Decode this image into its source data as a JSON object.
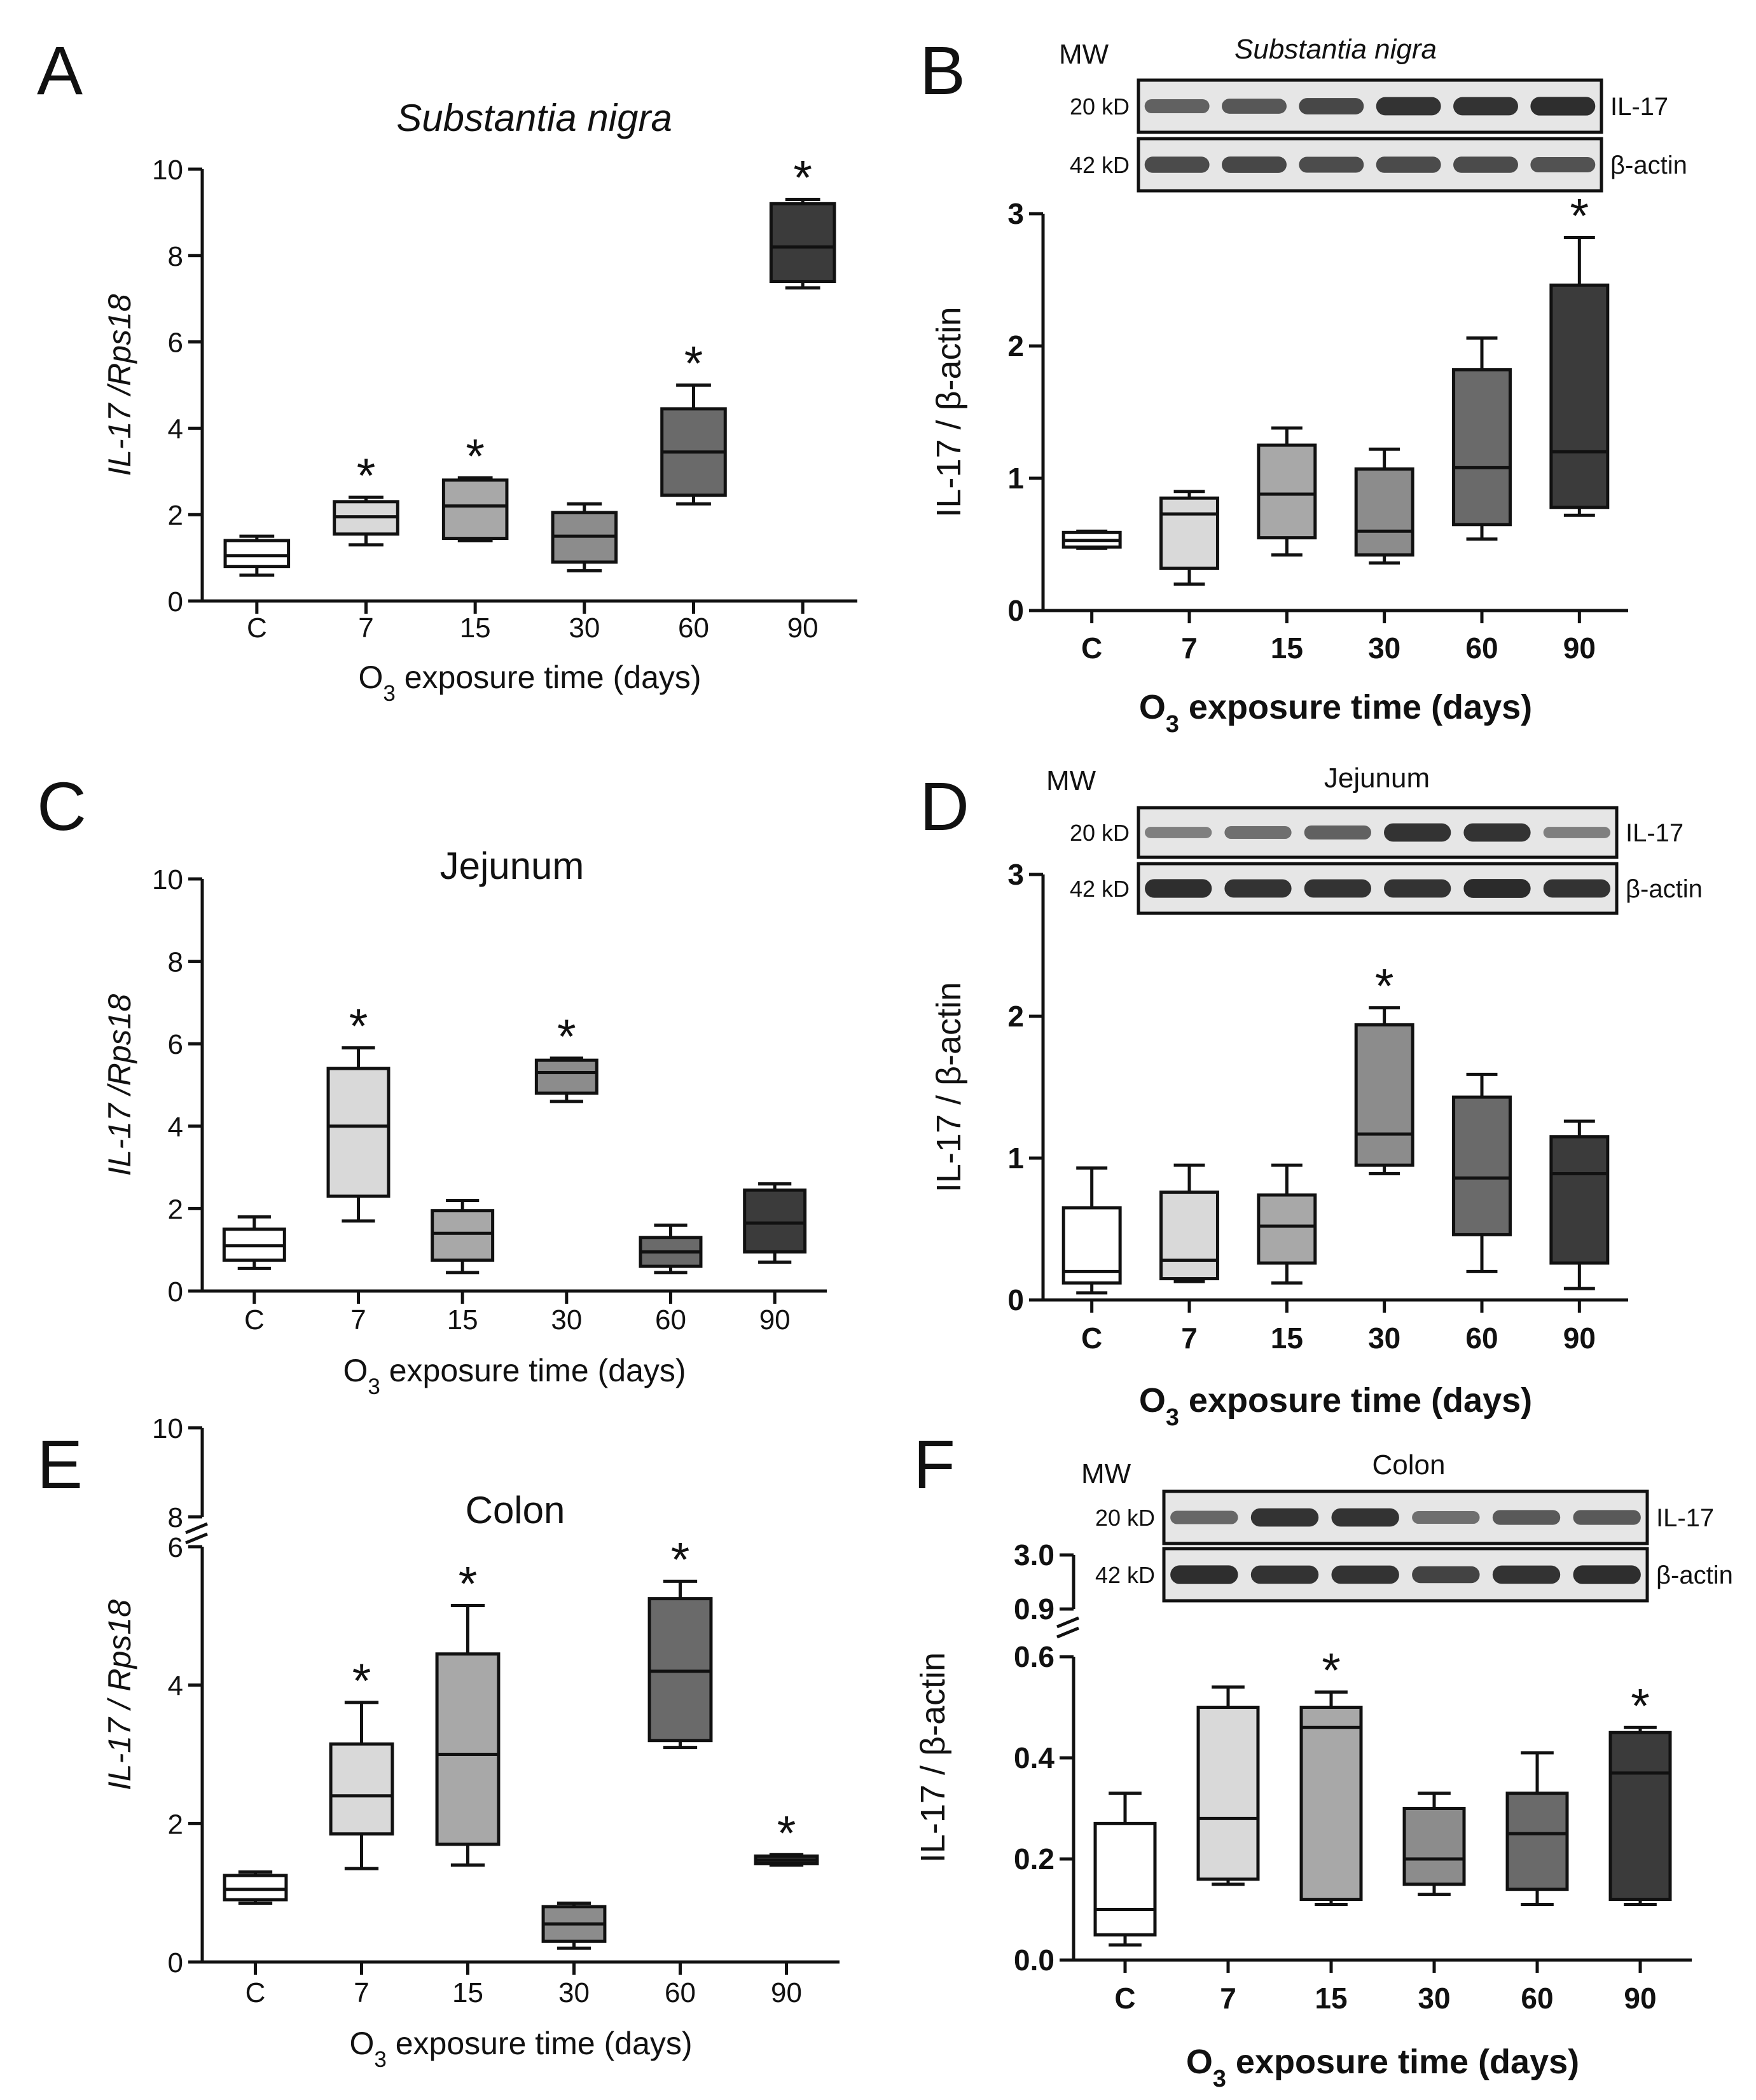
{
  "colors": {
    "c": "#ffffff",
    "d7": "#d9d9d9",
    "d15": "#a8a8a8",
    "d30": "#8c8c8c",
    "d60": "#6a6a6a",
    "d90": "#3b3b3b",
    "ink": "#111111",
    "blot": "#1c1c1c"
  },
  "chart_data": [
    {
      "id": "A",
      "panel_label": "A",
      "type": "box",
      "title": "Substantia nigra",
      "categories": [
        "C",
        "7",
        "15",
        "30",
        "60",
        "90"
      ],
      "xlabel_prefix": "O",
      "xlabel_sub": "3",
      "xlabel_suffix": " exposure time (days)",
      "ylabel": "IL-17 /Rps18",
      "ylim": [
        0,
        10
      ],
      "yticks": [
        "0",
        "2",
        "4",
        "6",
        "8",
        "10"
      ],
      "boxes": [
        {
          "min": 0.6,
          "q1": 0.8,
          "median": 1.05,
          "q3": 1.4,
          "max": 1.5,
          "sig": false
        },
        {
          "min": 1.3,
          "q1": 1.55,
          "median": 1.95,
          "q3": 2.3,
          "max": 2.4,
          "sig": true
        },
        {
          "min": 1.4,
          "q1": 1.45,
          "median": 2.2,
          "q3": 2.8,
          "max": 2.85,
          "sig": true
        },
        {
          "min": 0.7,
          "q1": 0.9,
          "median": 1.5,
          "q3": 2.05,
          "max": 2.25,
          "sig": false
        },
        {
          "min": 2.25,
          "q1": 2.45,
          "median": 3.45,
          "q3": 4.45,
          "max": 5.0,
          "sig": true
        },
        {
          "min": 7.25,
          "q1": 7.4,
          "median": 8.2,
          "q3": 9.2,
          "max": 9.3,
          "sig": true
        }
      ],
      "significance_marker": "*"
    },
    {
      "id": "B",
      "panel_label": "B",
      "type": "box",
      "categories": [
        "C",
        "7",
        "15",
        "30",
        "60",
        "90"
      ],
      "xlabel_prefix": "O",
      "xlabel_sub": "3",
      "xlabel_suffix": " exposure time (days)",
      "ylabel": "IL-17 / β-actin",
      "ylim": [
        0,
        3
      ],
      "yticks": [
        "0",
        "1",
        "2",
        "3"
      ],
      "boxes": [
        {
          "min": 0.47,
          "q1": 0.48,
          "median": 0.53,
          "q3": 0.59,
          "max": 0.6,
          "sig": false
        },
        {
          "min": 0.2,
          "q1": 0.32,
          "median": 0.73,
          "q3": 0.85,
          "max": 0.9,
          "sig": false
        },
        {
          "min": 0.42,
          "q1": 0.55,
          "median": 0.88,
          "q3": 1.25,
          "max": 1.38,
          "sig": false
        },
        {
          "min": 0.36,
          "q1": 0.42,
          "median": 0.6,
          "q3": 1.07,
          "max": 1.22,
          "sig": false
        },
        {
          "min": 0.54,
          "q1": 0.65,
          "median": 1.08,
          "q3": 1.82,
          "max": 2.06,
          "sig": false
        },
        {
          "min": 0.72,
          "q1": 0.78,
          "median": 1.2,
          "q3": 2.46,
          "max": 2.82,
          "sig": true
        }
      ],
      "significance_marker": "*",
      "blot": {
        "mw_label": "MW",
        "tissue": "Substantia nigra",
        "rows": [
          {
            "mw": "20 kD",
            "protein": "IL-17",
            "intensity": [
              0.55,
              0.62,
              0.72,
              0.85,
              0.85,
              0.88
            ]
          },
          {
            "mw": "42 kD",
            "protein": "β-actin",
            "intensity": [
              0.7,
              0.72,
              0.68,
              0.7,
              0.7,
              0.64
            ]
          }
        ]
      }
    },
    {
      "id": "C",
      "panel_label": "C",
      "type": "box",
      "title": "Jejunum",
      "categories": [
        "C",
        "7",
        "15",
        "30",
        "60",
        "90"
      ],
      "xlabel_prefix": "O",
      "xlabel_sub": "3",
      "xlabel_suffix": " exposure time (days)",
      "ylabel": "IL-17 /Rps18",
      "ylim": [
        0,
        10
      ],
      "yticks": [
        "0",
        "2",
        "4",
        "6",
        "8",
        "10"
      ],
      "boxes": [
        {
          "min": 0.55,
          "q1": 0.75,
          "median": 1.1,
          "q3": 1.5,
          "max": 1.8,
          "sig": false
        },
        {
          "min": 1.7,
          "q1": 2.3,
          "median": 4.0,
          "q3": 5.4,
          "max": 5.9,
          "sig": true
        },
        {
          "min": 0.45,
          "q1": 0.75,
          "median": 1.4,
          "q3": 1.95,
          "max": 2.2,
          "sig": false
        },
        {
          "min": 4.6,
          "q1": 4.8,
          "median": 5.3,
          "q3": 5.6,
          "max": 5.65,
          "sig": true
        },
        {
          "min": 0.45,
          "q1": 0.6,
          "median": 0.95,
          "q3": 1.3,
          "max": 1.6,
          "sig": false
        },
        {
          "min": 0.7,
          "q1": 0.95,
          "median": 1.65,
          "q3": 2.45,
          "max": 2.6,
          "sig": false
        }
      ],
      "significance_marker": "*"
    },
    {
      "id": "D",
      "panel_label": "D",
      "type": "box",
      "categories": [
        "C",
        "7",
        "15",
        "30",
        "60",
        "90"
      ],
      "xlabel_prefix": "O",
      "xlabel_sub": "3",
      "xlabel_suffix": " exposure time (days)",
      "ylabel": "IL-17 / β-actin",
      "ylim": [
        0,
        3
      ],
      "yticks": [
        "0",
        "1",
        "2",
        "3"
      ],
      "boxes": [
        {
          "min": 0.05,
          "q1": 0.12,
          "median": 0.2,
          "q3": 0.65,
          "max": 0.93,
          "sig": false
        },
        {
          "min": 0.13,
          "q1": 0.15,
          "median": 0.28,
          "q3": 0.76,
          "max": 0.95,
          "sig": false
        },
        {
          "min": 0.12,
          "q1": 0.26,
          "median": 0.52,
          "q3": 0.74,
          "max": 0.95,
          "sig": false
        },
        {
          "min": 0.89,
          "q1": 0.95,
          "median": 1.17,
          "q3": 1.94,
          "max": 2.06,
          "sig": true
        },
        {
          "min": 0.2,
          "q1": 0.46,
          "median": 0.86,
          "q3": 1.43,
          "max": 1.59,
          "sig": false
        },
        {
          "min": 0.08,
          "q1": 0.26,
          "median": 0.89,
          "q3": 1.15,
          "max": 1.26,
          "sig": false
        }
      ],
      "significance_marker": "*",
      "blot": {
        "mw_label": "MW",
        "tissue": "Jejunum",
        "rows": [
          {
            "mw": "20 kD",
            "protein": "IL-17",
            "intensity": [
              0.35,
              0.45,
              0.55,
              0.85,
              0.85,
              0.35
            ]
          },
          {
            "mw": "42 kD",
            "protein": "β-actin",
            "intensity": [
              0.88,
              0.85,
              0.85,
              0.85,
              0.9,
              0.85
            ]
          }
        ]
      }
    },
    {
      "id": "E",
      "panel_label": "E",
      "type": "box",
      "title": "Colon",
      "categories": [
        "C",
        "7",
        "15",
        "30",
        "60",
        "90"
      ],
      "xlabel_prefix": "O",
      "xlabel_sub": "3",
      "xlabel_suffix": " exposure time (days)",
      "ylabel": "IL-17 / Rps18",
      "ylim": [
        0,
        6
      ],
      "yticks": [
        "0",
        "2",
        "4",
        "6"
      ],
      "upper_segment": {
        "range": [
          8,
          10
        ],
        "ticks": [
          "8",
          "10"
        ]
      },
      "boxes": [
        {
          "min": 0.85,
          "q1": 0.9,
          "median": 1.05,
          "q3": 1.25,
          "max": 1.3,
          "sig": false
        },
        {
          "min": 1.35,
          "q1": 1.85,
          "median": 2.4,
          "q3": 3.15,
          "max": 3.75,
          "sig": true
        },
        {
          "min": 1.4,
          "q1": 1.7,
          "median": 3.0,
          "q3": 4.45,
          "max": 5.15,
          "sig": true
        },
        {
          "min": 0.2,
          "q1": 0.3,
          "median": 0.55,
          "q3": 0.8,
          "max": 0.85,
          "sig": false
        },
        {
          "min": 3.1,
          "q1": 3.2,
          "median": 4.2,
          "q3": 5.25,
          "max": 5.5,
          "sig": true
        },
        {
          "min": 1.4,
          "q1": 1.42,
          "median": 1.47,
          "q3": 1.53,
          "max": 1.55,
          "sig": true
        }
      ],
      "significance_marker": "*"
    },
    {
      "id": "F",
      "panel_label": "F",
      "type": "box",
      "categories": [
        "C",
        "7",
        "15",
        "30",
        "60",
        "90"
      ],
      "xlabel_prefix": "O",
      "xlabel_sub": "3",
      "xlabel_suffix": " exposure time (days)",
      "ylabel": "IL-17 / β-actin",
      "ylim": [
        0,
        0.6
      ],
      "yticks": [
        "0.0",
        "0.2",
        "0.4",
        "0.6"
      ],
      "upper_segment": {
        "range": [
          0.9,
          3.0
        ],
        "ticks": [
          "0.9",
          "3.0"
        ]
      },
      "boxes": [
        {
          "min": 0.03,
          "q1": 0.05,
          "median": 0.1,
          "q3": 0.27,
          "max": 0.33,
          "sig": false
        },
        {
          "min": 0.15,
          "q1": 0.16,
          "median": 0.28,
          "q3": 0.5,
          "max": 0.54,
          "sig": false
        },
        {
          "min": 0.11,
          "q1": 0.12,
          "median": 0.46,
          "q3": 0.5,
          "max": 0.53,
          "sig": true
        },
        {
          "min": 0.13,
          "q1": 0.15,
          "median": 0.2,
          "q3": 0.3,
          "max": 0.33,
          "sig": false
        },
        {
          "min": 0.11,
          "q1": 0.14,
          "median": 0.25,
          "q3": 0.33,
          "max": 0.41,
          "sig": false
        },
        {
          "min": 0.11,
          "q1": 0.12,
          "median": 0.37,
          "q3": 0.45,
          "max": 0.46,
          "sig": true
        }
      ],
      "significance_marker": "*",
      "blot": {
        "mw_label": "MW",
        "tissue": "Colon",
        "rows": [
          {
            "mw": "20 kD",
            "protein": "IL-17",
            "intensity": [
              0.5,
              0.85,
              0.85,
              0.45,
              0.6,
              0.6
            ]
          },
          {
            "mw": "42 kD",
            "protein": "β-actin",
            "intensity": [
              0.88,
              0.85,
              0.85,
              0.75,
              0.85,
              0.88
            ]
          }
        ]
      }
    }
  ]
}
